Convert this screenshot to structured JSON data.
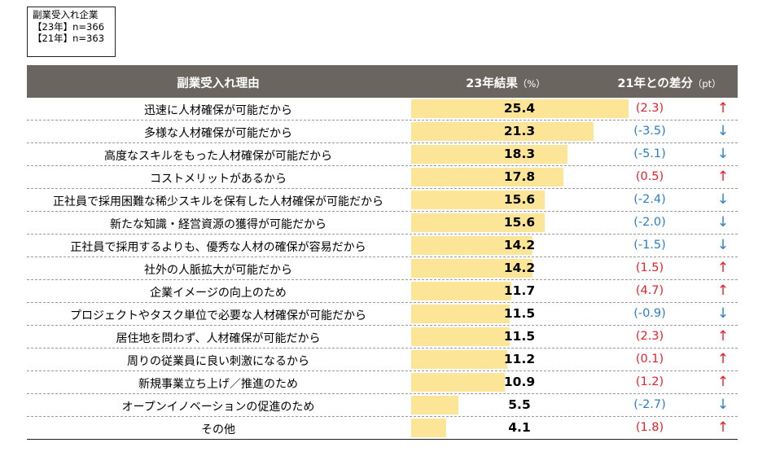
{
  "info_box": {
    "line1": "副業受入れ企業",
    "line2": "【23年】n=366",
    "line3": "【21年】n=363"
  },
  "header": {
    "reason": "副業受入れ理由",
    "result": "23年結果",
    "result_unit": "（%）",
    "diff": "21年との差分",
    "diff_unit": "（pt）"
  },
  "colors": {
    "bar": "#fde597",
    "header_bg": "#6b6560",
    "up": "#e8202a",
    "down": "#2a7fc8"
  },
  "chart_data": {
    "type": "bar",
    "orientation": "horizontal",
    "xlim": [
      0,
      25.4
    ],
    "categories": [
      "迅速に人材確保が可能だから",
      "多様な人材確保が可能だから",
      "高度なスキルをもった人材確保が可能だから",
      "コストメリットがあるから",
      "正社員で採用困難な稀少スキルを保有した人材確保が可能だから",
      "新たな知識・経営資源の獲得が可能だから",
      "正社員で採用するよりも、優秀な人材の確保が容易だから",
      "社外の人脈拡大が可能だから",
      "企業イメージの向上のため",
      "プロジェクトやタスク単位で必要な人材確保が可能だから",
      "居住地を問わず、人材確保が可能だから",
      "周りの従業員に良い刺激になるから",
      "新規事業立ち上げ／推進のため",
      "オープンイノベーションの促進のため",
      "その他"
    ],
    "values": [
      "25.4",
      "21.3",
      "18.3",
      "17.8",
      "15.6",
      "15.6",
      "14.2",
      "14.2",
      "11.7",
      "11.5",
      "11.5",
      "11.2",
      "10.9",
      "5.5",
      "4.1"
    ],
    "diffs": [
      "(2.3)",
      "(-3.5)",
      "(-5.1)",
      "(0.5)",
      "(-2.4)",
      "(-2.0)",
      "(-1.5)",
      "(1.5)",
      "(4.7)",
      "(-0.9)",
      "(2.3)",
      "(0.1)",
      "(1.2)",
      "(-2.7)",
      "(1.8)"
    ],
    "arrows": [
      "↑",
      "↓",
      "↓",
      "↑",
      "↓",
      "↓",
      "↓",
      "↑",
      "↑",
      "↓",
      "↑",
      "↑",
      "↑",
      "↓",
      "↑"
    ]
  }
}
